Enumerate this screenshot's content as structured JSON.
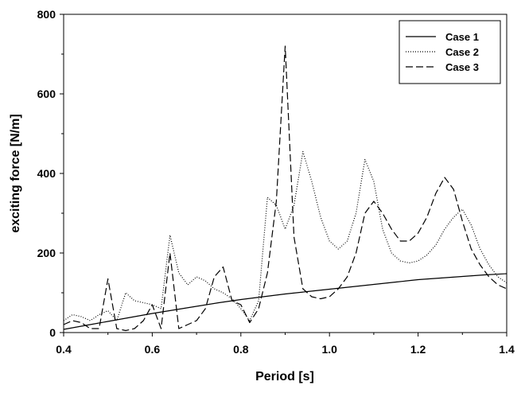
{
  "chart_data": {
    "type": "line",
    "title": "",
    "xlabel": "Period [s]",
    "ylabel": "exciting force [N/m]",
    "xlim": [
      0.4,
      1.4
    ],
    "ylim": [
      0,
      800
    ],
    "xticks": [
      0.4,
      0.6,
      0.8,
      1.0,
      1.2,
      1.4
    ],
    "xtick_labels": [
      "0.4",
      "0.6",
      "0.8",
      "1.0",
      "1.2",
      "1.4"
    ],
    "yticks": [
      0,
      200,
      400,
      600,
      800
    ],
    "ytick_labels": [
      "0",
      "200",
      "400",
      "600",
      "800"
    ],
    "grid": false,
    "legend": "top-right",
    "series": [
      {
        "name": "Case 1",
        "style": "solid",
        "x": [
          0.4,
          0.45,
          0.5,
          0.55,
          0.6,
          0.65,
          0.7,
          0.75,
          0.8,
          0.85,
          0.9,
          0.95,
          1.0,
          1.05,
          1.1,
          1.15,
          1.2,
          1.25,
          1.3,
          1.35,
          1.4
        ],
        "y": [
          8,
          18,
          28,
          38,
          48,
          57,
          66,
          75,
          83,
          90,
          97,
          103,
          109,
          115,
          121,
          127,
          133,
          137,
          141,
          145,
          148
        ]
      },
      {
        "name": "Case 2",
        "style": "dotted",
        "x": [
          0.4,
          0.42,
          0.44,
          0.46,
          0.48,
          0.5,
          0.52,
          0.54,
          0.56,
          0.58,
          0.6,
          0.62,
          0.64,
          0.66,
          0.68,
          0.7,
          0.72,
          0.74,
          0.76,
          0.78,
          0.8,
          0.82,
          0.84,
          0.86,
          0.88,
          0.9,
          0.92,
          0.94,
          0.96,
          0.98,
          1.0,
          1.02,
          1.04,
          1.06,
          1.08,
          1.1,
          1.12,
          1.14,
          1.16,
          1.18,
          1.2,
          1.22,
          1.24,
          1.26,
          1.28,
          1.3,
          1.32,
          1.34,
          1.36,
          1.38,
          1.4
        ],
        "y": [
          30,
          45,
          40,
          30,
          45,
          55,
          30,
          100,
          80,
          75,
          70,
          60,
          245,
          150,
          120,
          140,
          130,
          110,
          100,
          85,
          60,
          30,
          80,
          340,
          320,
          260,
          320,
          455,
          380,
          290,
          230,
          210,
          230,
          300,
          435,
          380,
          260,
          200,
          180,
          175,
          180,
          195,
          220,
          260,
          290,
          310,
          270,
          210,
          170,
          140,
          125
        ]
      },
      {
        "name": "Case 3",
        "style": "dashed",
        "x": [
          0.4,
          0.42,
          0.44,
          0.46,
          0.48,
          0.5,
          0.52,
          0.54,
          0.56,
          0.58,
          0.6,
          0.62,
          0.64,
          0.66,
          0.68,
          0.7,
          0.72,
          0.74,
          0.76,
          0.78,
          0.8,
          0.82,
          0.84,
          0.86,
          0.88,
          0.9,
          0.92,
          0.94,
          0.96,
          0.98,
          1.0,
          1.02,
          1.04,
          1.06,
          1.08,
          1.1,
          1.12,
          1.14,
          1.16,
          1.18,
          1.2,
          1.22,
          1.24,
          1.26,
          1.28,
          1.3,
          1.32,
          1.34,
          1.36,
          1.38,
          1.4
        ],
        "y": [
          20,
          30,
          25,
          10,
          10,
          135,
          10,
          5,
          10,
          30,
          70,
          10,
          200,
          10,
          20,
          30,
          60,
          140,
          165,
          80,
          70,
          25,
          60,
          150,
          330,
          720,
          240,
          110,
          90,
          85,
          90,
          110,
          140,
          200,
          300,
          330,
          300,
          260,
          230,
          230,
          250,
          290,
          350,
          390,
          360,
          280,
          210,
          170,
          140,
          120,
          110
        ]
      }
    ]
  }
}
